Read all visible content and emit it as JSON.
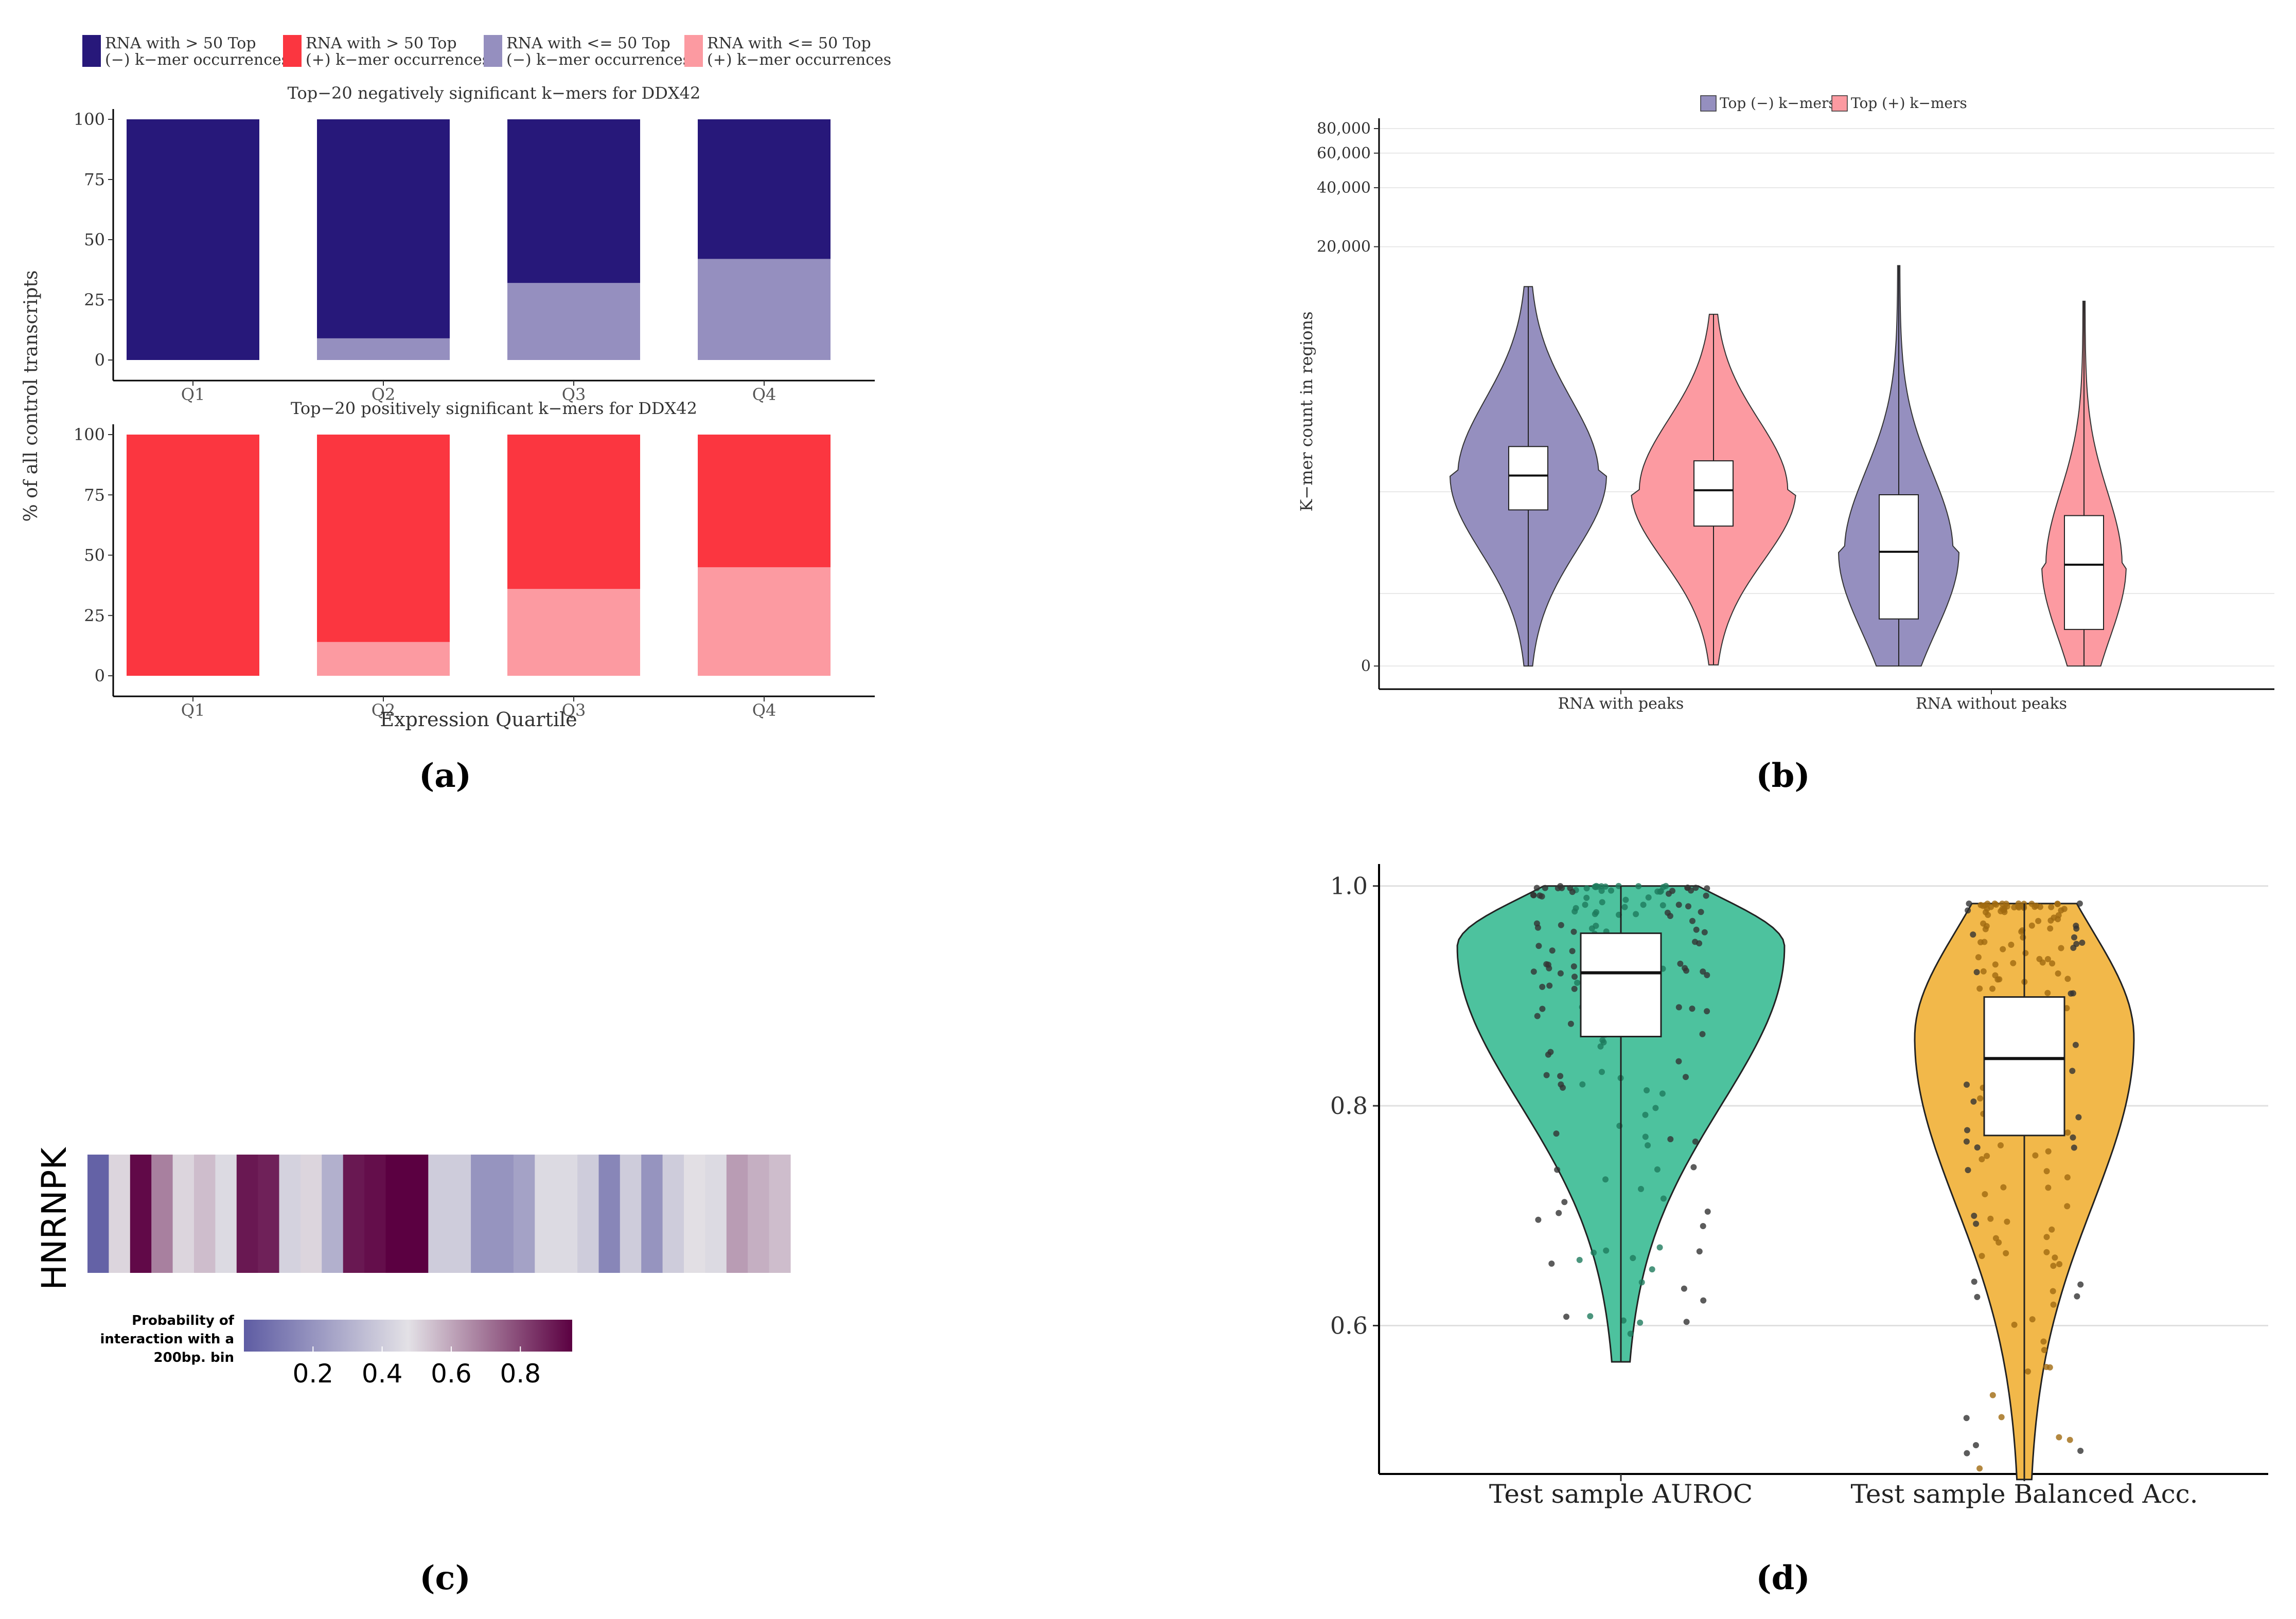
{
  "panel_labels": [
    "(a)",
    "(b)",
    "(c)",
    "(d)"
  ],
  "colors": {
    "neg_high": "#27187a",
    "pos_high": "#fb3640",
    "neg_low": "#958fbf",
    "pos_low": "#fc9aa1",
    "violin_neg": "#958fbf",
    "violin_pos": "#fc9aa1",
    "auroc": "#4dc29e",
    "balacc": "#f2b84a",
    "heat_low": "#5e5ca3",
    "heat_mid": "#e3e1e6",
    "heat_high": "#5b0041"
  },
  "chart_data": [
    {
      "id": "a-top",
      "type": "bar",
      "stacked": true,
      "legend": {
        "position": "top",
        "entries": [
          [
            "RNA with > 50 Top",
            "(−) k−mer occurrences"
          ],
          [
            "RNA with > 50 Top",
            "(+) k−mer occurrences"
          ],
          [
            "RNA with <= 50 Top",
            "(−) k−mer occurrences"
          ],
          [
            "RNA with <= 50 Top",
            "(+) k−mer occurrences"
          ]
        ]
      },
      "title": "Top−20 negatively significant k−mers for DDX42",
      "ylabel": "% of all control transcripts",
      "xlabel": "",
      "categories": [
        "Q1",
        "Q2",
        "Q3",
        "Q4"
      ],
      "ylim": [
        0,
        100
      ],
      "yticks": [
        0,
        25,
        50,
        75,
        100
      ],
      "series": [
        {
          "name": "RNA with <= 50 Top (−) k−mer occurrences",
          "values": [
            0,
            9,
            32,
            42
          ]
        },
        {
          "name": "RNA with > 50 Top (−) k−mer occurrences",
          "values": [
            100,
            91,
            68,
            58
          ]
        }
      ]
    },
    {
      "id": "a-bottom",
      "type": "bar",
      "stacked": true,
      "title": "Top−20 positively significant k−mers for DDX42",
      "xlabel": "Expression Quartile",
      "categories": [
        "Q1",
        "Q2",
        "Q3",
        "Q4"
      ],
      "ylim": [
        0,
        100
      ],
      "yticks": [
        0,
        25,
        50,
        75,
        100
      ],
      "series": [
        {
          "name": "RNA with <= 50 Top (+) k−mer occurrences",
          "values": [
            0,
            14,
            36,
            45
          ]
        },
        {
          "name": "RNA with > 50 Top (+) k−mer occurrences",
          "values": [
            100,
            86,
            64,
            55
          ]
        }
      ]
    },
    {
      "id": "b",
      "type": "violin",
      "legend": {
        "position": "top",
        "entries": [
          "Top (−) k−mers",
          "Top (+) k−mers"
        ]
      },
      "ylabel": "K−mer count in regions",
      "categories": [
        "RNA with peaks",
        "RNA without peaks"
      ],
      "yticks": [
        "0",
        "20,000",
        "40,000",
        "60,000",
        "80,000"
      ],
      "groups": [
        {
          "category": "RNA with peaks",
          "series": "Top (−) k−mers",
          "min": 0,
          "q1": 780,
          "median": 1240,
          "q3": 1800,
          "max": 12500
        },
        {
          "category": "RNA with peaks",
          "series": "Top (+) k−mers",
          "min": 2,
          "q1": 620,
          "median": 1020,
          "q3": 1500,
          "max": 9000
        },
        {
          "category": "RNA without peaks",
          "series": "Top (−) k−mers",
          "min": 0,
          "q1": 110,
          "median": 420,
          "q3": 960,
          "max": 16000
        },
        {
          "category": "RNA without peaks",
          "series": "Top (+) k−mers",
          "min": 0,
          "q1": 80,
          "median": 340,
          "q3": 720,
          "max": 10500
        }
      ]
    },
    {
      "id": "c",
      "type": "heatmap",
      "row_label": "HNRNPK",
      "colorbar": {
        "title": [
          "Probability of",
          "interaction with a",
          "200bp. bin"
        ],
        "ticks": [
          "0.2",
          "0.4",
          "0.6",
          "0.8"
        ],
        "range": [
          0,
          0.95
        ]
      },
      "values": [
        0.02,
        0.5,
        0.93,
        0.68,
        0.5,
        0.55,
        0.45,
        0.9,
        0.88,
        0.42,
        0.5,
        0.3,
        0.9,
        0.92,
        0.95,
        0.97,
        0.4,
        0.4,
        0.2,
        0.2,
        0.25,
        0.45,
        0.45,
        0.4,
        0.15,
        0.4,
        0.2,
        0.4,
        0.48,
        0.45,
        0.62,
        0.58,
        0.55
      ]
    },
    {
      "id": "d",
      "type": "violin",
      "categories": [
        "Test sample AUROC",
        "Test sample Balanced Acc."
      ],
      "ylim": [
        0.465,
        1.02
      ],
      "yticks": [
        "0.6",
        "0.8",
        "1.0"
      ],
      "groups": [
        {
          "category": "Test sample AUROC",
          "min": 0.567,
          "q1": 0.863,
          "median": 0.921,
          "q3": 0.957,
          "max": 1.0
        },
        {
          "category": "Test sample Balanced Acc.",
          "min": 0.46,
          "q1": 0.773,
          "median": 0.843,
          "q3": 0.899,
          "max": 0.984
        }
      ]
    }
  ]
}
